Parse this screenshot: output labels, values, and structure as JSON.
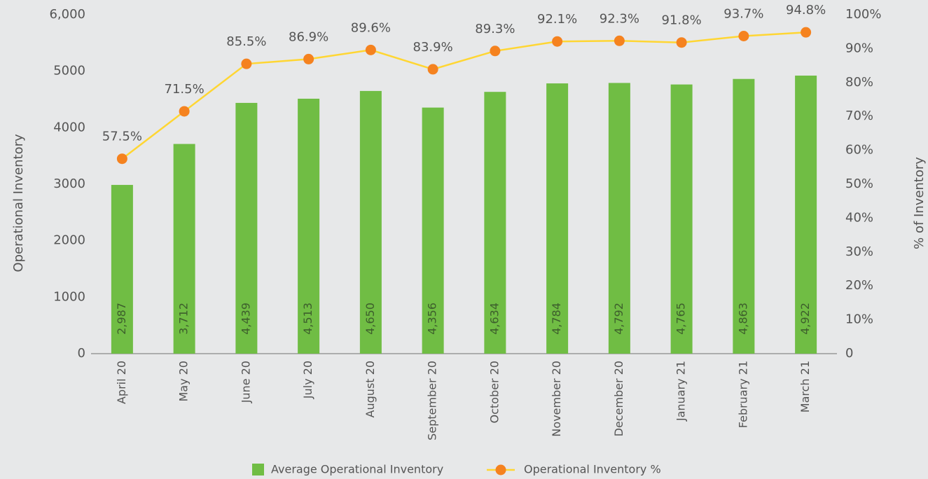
{
  "chart_data": {
    "type": "bar",
    "categories": [
      "April 20",
      "May 20",
      "June 20",
      "July 20",
      "August 20",
      "September 20",
      "October 20",
      "November 20",
      "December 20",
      "January 21",
      "February 21",
      "March 21"
    ],
    "series": [
      {
        "name": "Average Operational Inventory",
        "type": "bar",
        "axis": "y",
        "color": "#70bd44",
        "values": [
          2987,
          3712,
          4439,
          4513,
          4650,
          4356,
          4634,
          4784,
          4792,
          4765,
          4863,
          4922
        ],
        "value_labels": [
          "2,987",
          "3,712",
          "4,439",
          "4,513",
          "4,650",
          "4,356",
          "4,634",
          "4,784",
          "4,792",
          "4,765",
          "4,863",
          "4,922"
        ]
      },
      {
        "name": "Operational Inventory %",
        "type": "line",
        "axis": "y2",
        "color": "#ffd633",
        "marker_color": "#f5821f",
        "values": [
          57.5,
          71.5,
          85.5,
          86.9,
          89.6,
          83.9,
          89.3,
          92.1,
          92.3,
          91.8,
          93.7,
          94.8
        ],
        "value_labels": [
          "57.5%",
          "71.5%",
          "85.5%",
          "86.9%",
          "89.6%",
          "83.9%",
          "89.3%",
          "92.1%",
          "92.3%",
          "91.8%",
          "93.7%",
          "94.8%"
        ]
      }
    ],
    "y_label": "Operational Inventory",
    "y2_label": "% of Inventory",
    "ylim": [
      0,
      6000
    ],
    "yticks": [
      0,
      1000,
      2000,
      3000,
      4000,
      5000,
      {
        "value": 6000,
        "label": "6,000"
      }
    ],
    "y2lim": [
      0,
      100
    ],
    "y2ticks": [
      0,
      {
        "value": 10,
        "label": "10%"
      },
      {
        "value": 20,
        "label": "20%"
      },
      {
        "value": 30,
        "label": "30%"
      },
      {
        "value": 40,
        "label": "40%"
      },
      {
        "value": 50,
        "label": "50%"
      },
      {
        "value": 60,
        "label": "60%"
      },
      {
        "value": 70,
        "label": "70%"
      },
      {
        "value": 80,
        "label": "80%"
      },
      {
        "value": 90,
        "label": "90%"
      },
      {
        "value": 100,
        "label": "100%"
      }
    ],
    "grid": false,
    "legend": "bottom"
  }
}
